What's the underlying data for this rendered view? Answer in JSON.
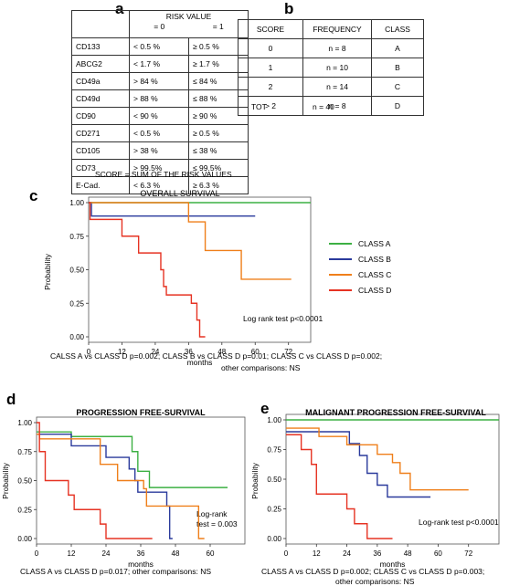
{
  "panels": {
    "a": "a",
    "b": "b",
    "c": "c",
    "d": "d",
    "e": "e"
  },
  "table_a": {
    "header": {
      "col1": "",
      "risk": "RISK VALUE",
      "v0": "= 0",
      "v1": "= 1"
    },
    "rows": [
      {
        "marker": "CD133",
        "v0": "< 0.5 %",
        "v1": "≥ 0.5 %"
      },
      {
        "marker": "ABCG2",
        "v0": "< 1.7 %",
        "v1": "≥ 1.7 %"
      },
      {
        "marker": "CD49a",
        "v0": "> 84 %",
        "v1": "≤ 84 %"
      },
      {
        "marker": "CD49d",
        "v0": "> 88 %",
        "v1": "≤ 88 %"
      },
      {
        "marker": "CD90",
        "v0": "< 90 %",
        "v1": "≥ 90 %"
      },
      {
        "marker": "CD271",
        "v0": "< 0.5 %",
        "v1": "≥ 0.5 %"
      },
      {
        "marker": "CD105",
        "v0": "> 38 %",
        "v1": "≤ 38 %"
      },
      {
        "marker": "CD73",
        "v0": "> 99.5%",
        "v1": "≤ 99.5%"
      },
      {
        "marker": "E-Cad.",
        "v0": "< 6.3 %",
        "v1": "≥ 6.3 %"
      }
    ],
    "caption": "SCORE = SUM OF THE RISK VALUES"
  },
  "table_b": {
    "header": {
      "score": "SCORE",
      "frequency": "FREQUENCY",
      "class": "CLASS"
    },
    "rows": [
      {
        "score": "0",
        "frequency": "n = 8",
        "class": "A"
      },
      {
        "score": "1",
        "frequency": "n = 10",
        "class": "B"
      },
      {
        "score": "2",
        "frequency": "n = 14",
        "class": "C"
      },
      {
        "score": "> 2",
        "frequency": "n = 8",
        "class": "D"
      }
    ],
    "total": {
      "label": "TOT",
      "value": "n = 40"
    }
  },
  "colors": {
    "class_a": "#3cb043",
    "class_b": "#2a3a9c",
    "class_c": "#ef7f1a",
    "class_d": "#e63323"
  },
  "legend": [
    "CLASS A",
    "CLASS B",
    "CLASS C",
    "CLASS D"
  ],
  "captions": {
    "c1": "CALSS A vs CLASS D p=0.002; CLASS B vs CLASS D p=0.01; CLASS C vs CLASS D p=0.002;",
    "c2": "other comparisons: NS",
    "d1": "CLASS A vs CLASS D p=0.017; other comparisons: NS",
    "e1": "CLASS A vs CLASS D p=0.002; CLASS C vs CLASS D p=0.003;",
    "e2": "other comparisons: NS"
  },
  "chart_data": [
    {
      "type": "line",
      "panel": "c",
      "title": "OVERALL SURVIVAL",
      "xlabel": "months",
      "ylabel": "Probability",
      "xlim": [
        0,
        80
      ],
      "ylim": [
        0,
        1
      ],
      "xticks": [
        0,
        12,
        24,
        36,
        48,
        60,
        72
      ],
      "yticks": [
        0.0,
        0.25,
        0.5,
        0.75,
        1.0
      ],
      "ytick_labels": [
        "0.00",
        "0.25",
        "0.50",
        "0.75",
        "1.00"
      ],
      "annotation": "Log rank test p<0.0001",
      "series": [
        {
          "name": "CLASS A",
          "step": [
            [
              0,
              1.0
            ],
            [
              80,
              1.0
            ]
          ]
        },
        {
          "name": "CLASS B",
          "step": [
            [
              0,
              1.0
            ],
            [
              1,
              0.9
            ],
            [
              60,
              0.9
            ]
          ]
        },
        {
          "name": "CLASS C",
          "step": [
            [
              0,
              1.0
            ],
            [
              36,
              0.857
            ],
            [
              42,
              0.643
            ],
            [
              55,
              0.429
            ],
            [
              73,
              0.429
            ]
          ]
        },
        {
          "name": "CLASS D",
          "step": [
            [
              0,
              1.0
            ],
            [
              0.5,
              0.875
            ],
            [
              12,
              0.75
            ],
            [
              18,
              0.625
            ],
            [
              26,
              0.5
            ],
            [
              27,
              0.375
            ],
            [
              28,
              0.312
            ],
            [
              37,
              0.25
            ],
            [
              39,
              0.125
            ],
            [
              40,
              0.0
            ],
            [
              42,
              0.0
            ]
          ]
        }
      ]
    },
    {
      "type": "line",
      "panel": "d",
      "title": "PROGRESSION FREE-SURVIVAL",
      "xlabel": "months",
      "ylabel": "Probability",
      "xlim": [
        0,
        72
      ],
      "ylim": [
        0,
        1
      ],
      "xticks": [
        0,
        12,
        24,
        36,
        48,
        60
      ],
      "yticks": [
        0.0,
        0.25,
        0.5,
        0.75,
        1.0
      ],
      "ytick_labels": [
        "0.00",
        "0.25",
        "0.50",
        "0.75",
        "1.00"
      ],
      "annotation_lines": [
        "Log-rank",
        "test = 0.003"
      ],
      "series": [
        {
          "name": "CLASS A",
          "step": [
            [
              0,
              0.92
            ],
            [
              12,
              0.88
            ],
            [
              33,
              0.75
            ],
            [
              35,
              0.58
            ],
            [
              39,
              0.44
            ],
            [
              66,
              0.44
            ]
          ]
        },
        {
          "name": "CLASS B",
          "step": [
            [
              0,
              0.9
            ],
            [
              12,
              0.8
            ],
            [
              24,
              0.7
            ],
            [
              32,
              0.6
            ],
            [
              34,
              0.5
            ],
            [
              35,
              0.4
            ],
            [
              45,
              0.28
            ],
            [
              46,
              0.0
            ],
            [
              47,
              0.0
            ]
          ]
        },
        {
          "name": "CLASS C",
          "step": [
            [
              0,
              0.9
            ],
            [
              1,
              0.86
            ],
            [
              22,
              0.64
            ],
            [
              28,
              0.5
            ],
            [
              37,
              0.43
            ],
            [
              38,
              0.28
            ],
            [
              47,
              0.28
            ],
            [
              56,
              0.0
            ],
            [
              58,
              0.0
            ]
          ]
        },
        {
          "name": "CLASS D",
          "step": [
            [
              0,
              1.0
            ],
            [
              1,
              0.75
            ],
            [
              3,
              0.5
            ],
            [
              11,
              0.375
            ],
            [
              13,
              0.25
            ],
            [
              22,
              0.125
            ],
            [
              24,
              0.0
            ],
            [
              40,
              0.0
            ]
          ]
        }
      ]
    },
    {
      "type": "line",
      "panel": "e",
      "title": "MALIGNANT PROGRESSION FREE-SURVIVAL",
      "xlabel": "months",
      "ylabel": "Probability",
      "xlim": [
        0,
        84
      ],
      "ylim": [
        0,
        1
      ],
      "xticks": [
        0,
        12,
        24,
        36,
        48,
        60,
        72
      ],
      "yticks": [
        0.0,
        0.25,
        0.5,
        0.75,
        1.0
      ],
      "ytick_labels": [
        "0.00",
        "0.25",
        "0.50",
        "0.75",
        "1.00"
      ],
      "annotation": "Log-rank test p<0.0001",
      "series": [
        {
          "name": "CLASS A",
          "step": [
            [
              0,
              1.0
            ],
            [
              84,
              1.0
            ]
          ]
        },
        {
          "name": "CLASS B",
          "step": [
            [
              0,
              0.9
            ],
            [
              12,
              0.9
            ],
            [
              25,
              0.8
            ],
            [
              29,
              0.7
            ],
            [
              32,
              0.55
            ],
            [
              36,
              0.45
            ],
            [
              40,
              0.35
            ],
            [
              57,
              0.35
            ]
          ]
        },
        {
          "name": "CLASS C",
          "step": [
            [
              0,
              0.93
            ],
            [
              13,
              0.86
            ],
            [
              24,
              0.79
            ],
            [
              36,
              0.71
            ],
            [
              42,
              0.64
            ],
            [
              45,
              0.55
            ],
            [
              49,
              0.41
            ],
            [
              72,
              0.41
            ]
          ]
        },
        {
          "name": "CLASS D",
          "step": [
            [
              0,
              0.875
            ],
            [
              6,
              0.75
            ],
            [
              10,
              0.625
            ],
            [
              12,
              0.375
            ],
            [
              24,
              0.25
            ],
            [
              27,
              0.125
            ],
            [
              32,
              0.0
            ],
            [
              42,
              0.0
            ]
          ]
        }
      ]
    }
  ]
}
